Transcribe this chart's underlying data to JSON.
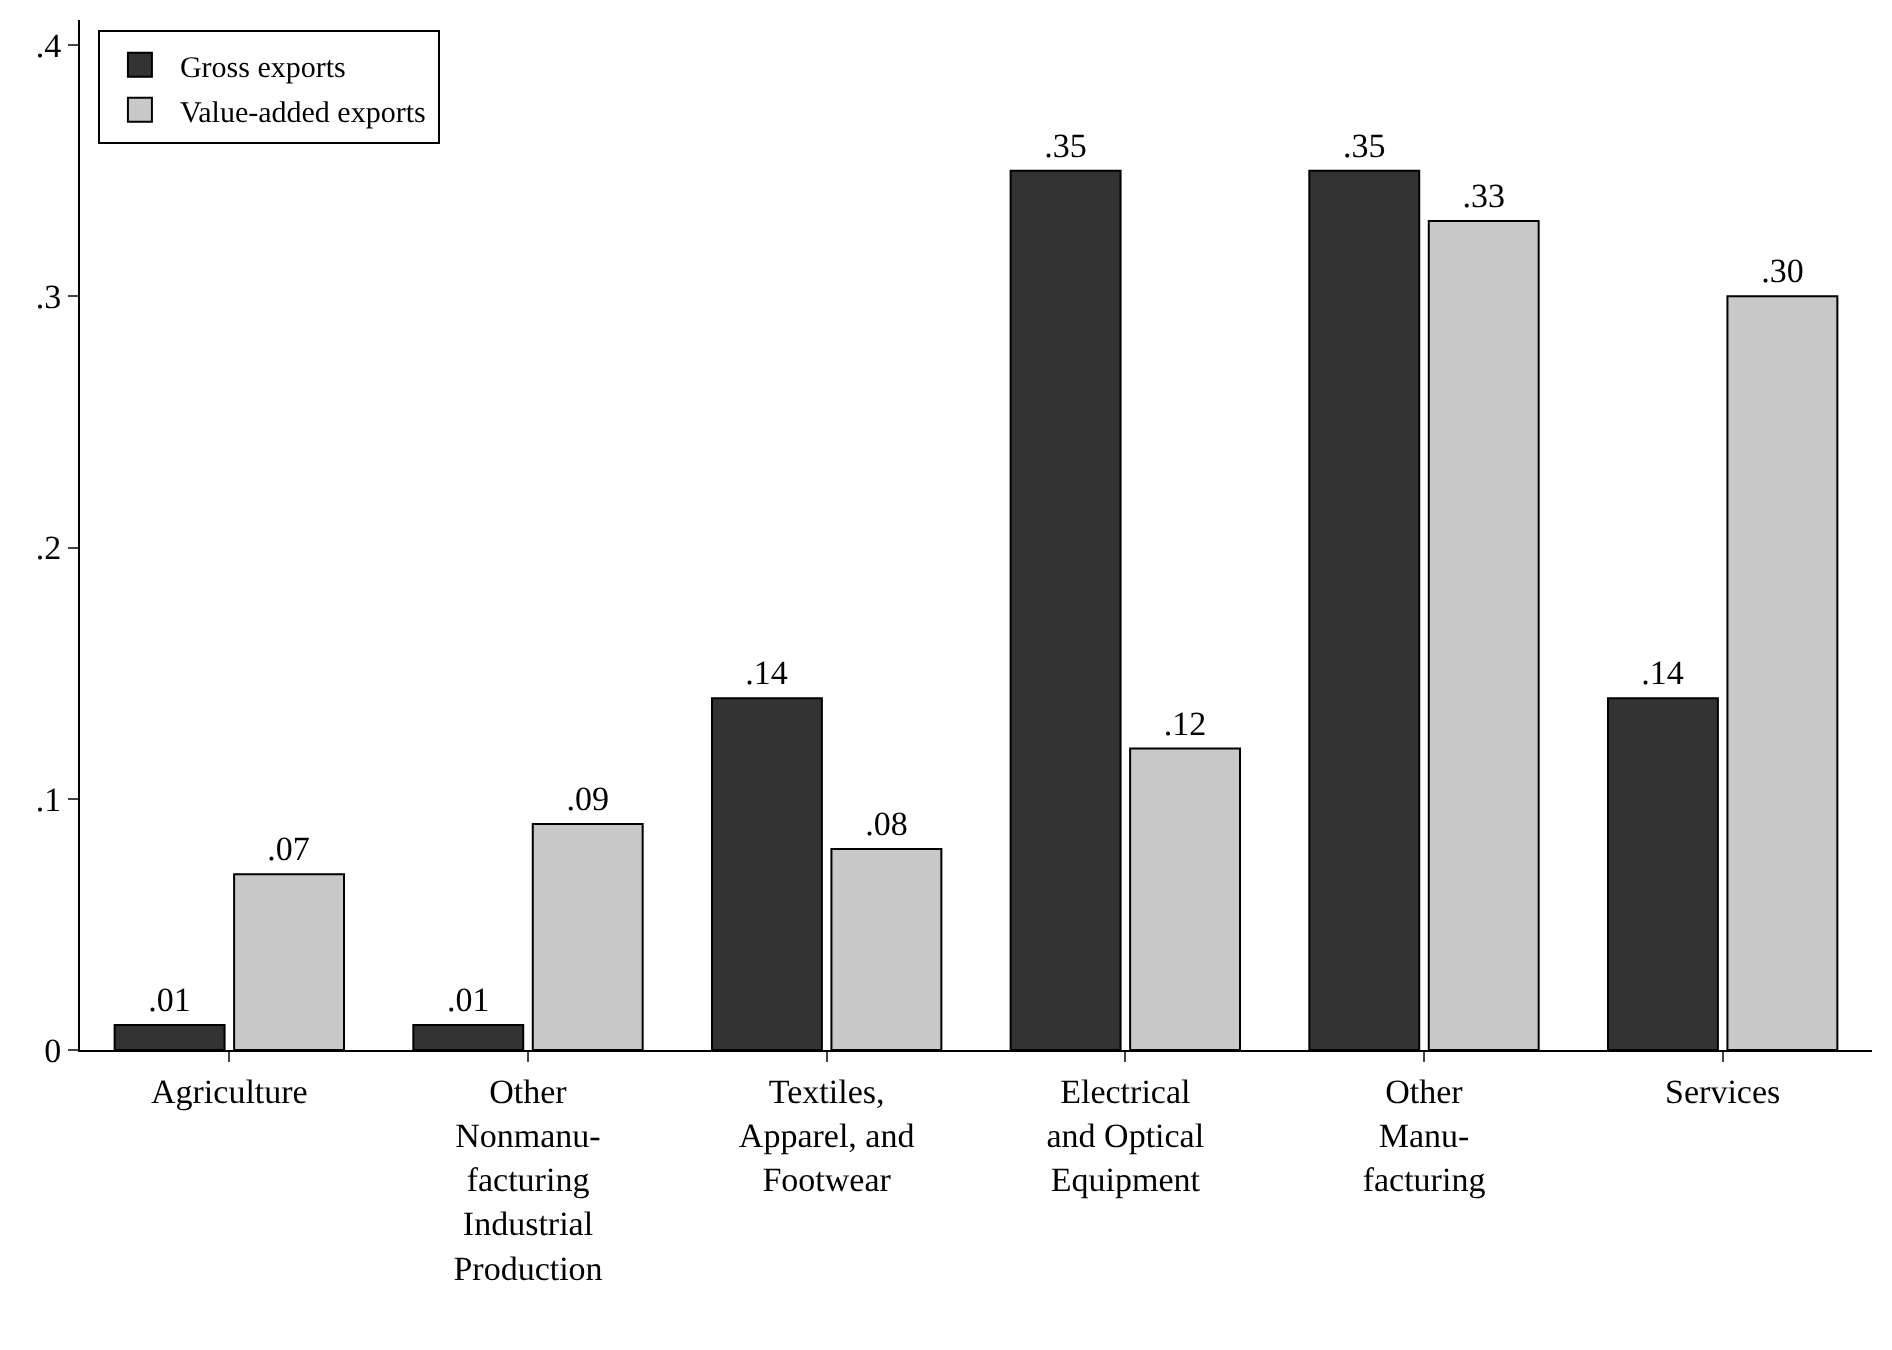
{
  "chart_data": {
    "type": "bar",
    "categories": [
      "Agriculture",
      "Other\nNonmanu-\nfacturing\nIndustrial\nProduction",
      "Textiles,\nApparel, and\nFootwear",
      "Electrical\nand Optical\nEquipment",
      "Other\nManu-\nfacturing",
      "Services"
    ],
    "series": [
      {
        "name": "Gross exports",
        "color": "#333333",
        "values": [
          0.01,
          0.01,
          0.14,
          0.35,
          0.35,
          0.14
        ],
        "value_labels": [
          ".01",
          ".01",
          ".14",
          ".35",
          ".35",
          ".14"
        ]
      },
      {
        "name": "Value-added exports",
        "color": "#c8c8c8",
        "values": [
          0.07,
          0.09,
          0.08,
          0.12,
          0.33,
          0.3
        ],
        "value_labels": [
          ".07",
          ".09",
          ".08",
          ".12",
          ".33",
          ".30"
        ]
      }
    ],
    "ylim": [
      0,
      0.41
    ],
    "yticks": [
      0,
      {
        "value": 0.1,
        "label": ".1"
      },
      {
        "value": 0.2,
        "label": ".2"
      },
      {
        "value": 0.3,
        "label": ".3"
      },
      {
        "value": 0.4,
        "label": ".4"
      }
    ],
    "legend": "top left"
  }
}
